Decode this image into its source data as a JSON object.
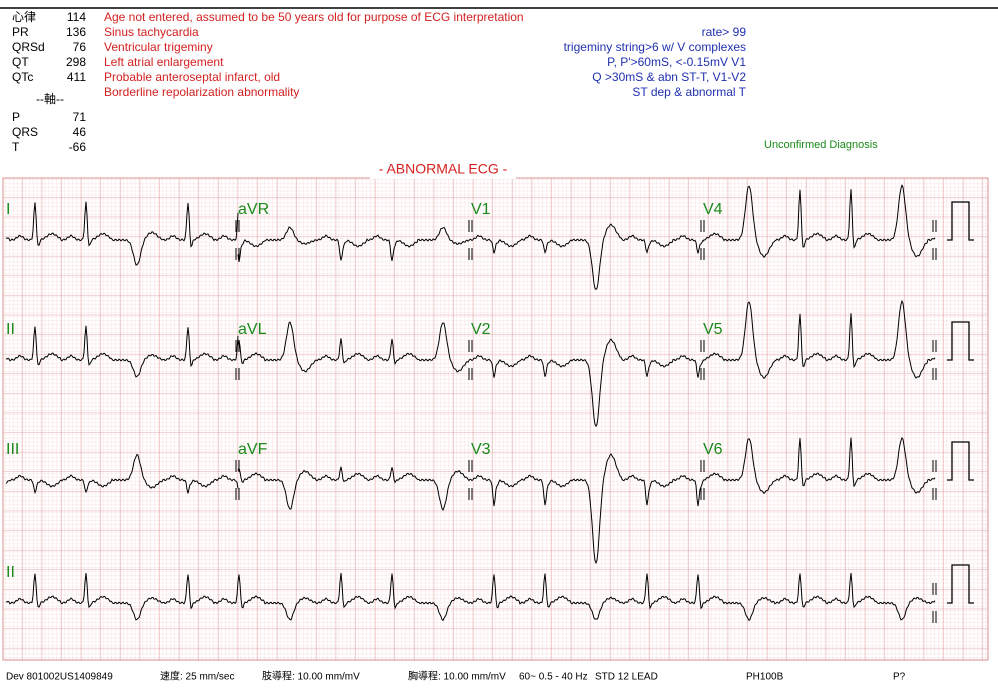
{
  "measurements": [
    {
      "label": "心律",
      "value": 114
    },
    {
      "label": "PR",
      "value": 136
    },
    {
      "label": "QRSd",
      "value": 76
    },
    {
      "label": "QT",
      "value": 298
    },
    {
      "label": "QTc",
      "value": 411
    }
  ],
  "axis_header": "--軸--",
  "axis": [
    {
      "label": "P",
      "value": 71
    },
    {
      "label": "QRS",
      "value": 46
    },
    {
      "label": "T",
      "value": -66
    }
  ],
  "interpretation": [
    "Age not entered, assumed to be 50 years old for purpose of ECG interpretation",
    "Sinus tachycardia",
    "Ventricular trigeminy",
    "Left atrial enlargement",
    "Probable anteroseptal infarct, old",
    "Borderline repolarization abnormality"
  ],
  "criteria": [
    "rate> 99",
    "trigeminy string>6 w/ V complexes",
    "P, P'>60mS, <-0.15mV V1",
    "Q >30mS & abn ST-T, V1-V2",
    "ST dep & abnormal T"
  ],
  "status": "Unconfirmed Diagnosis",
  "banner": "- ABNORMAL ECG -",
  "leads": [
    [
      "I",
      "aVR",
      "V1",
      "V4"
    ],
    [
      "II",
      "aVL",
      "V2",
      "V5"
    ],
    [
      "III",
      "aVF",
      "V3",
      "V6"
    ],
    [
      "II"
    ]
  ],
  "footer": [
    "Dev  801002US1409849",
    "速度: 25 mm/sec",
    "肢導程: 10.00 mm/mV",
    "胸導程: 10.00 mm/mV",
    "60~ 0.5 - 40 Hz",
    "STD 12 LEAD",
    "PH100B",
    "P?"
  ]
}
